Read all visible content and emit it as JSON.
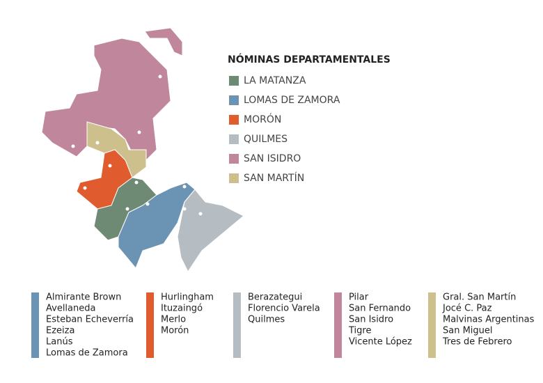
{
  "title": "NÓMINAS DEPARTAMENTALES",
  "legend": [
    {
      "label": "LA MATANZA",
      "color": "#6e8a74"
    },
    {
      "label": "LOMAS DE ZAMORA",
      "color": "#6b93b3"
    },
    {
      "label": "MORÓN",
      "color": "#e05c2e"
    },
    {
      "label": "QUILMES",
      "color": "#b6bdc2"
    },
    {
      "label": "SAN ISIDRO",
      "color": "#c0869c"
    },
    {
      "label": "SAN MARTÍN",
      "color": "#cdc08c"
    }
  ],
  "groups": [
    {
      "color": "#6b93b3",
      "items": [
        "Almirante Brown",
        "Avellaneda",
        "Esteban Echeverría",
        "Ezeiza",
        "Lanús",
        "Lomas de Zamora"
      ]
    },
    {
      "color": "#e05c2e",
      "items": [
        "Hurlingham",
        "Ituzaingó",
        "Merlo",
        "Morón"
      ]
    },
    {
      "color": "#b6bdc2",
      "items": [
        "Berazategui",
        "Florencio Varela",
        "Quilmes"
      ]
    },
    {
      "color": "#c0869c",
      "items": [
        "Pilar",
        "San Fernando",
        "San Isidro",
        "Tigre",
        "Vicente López"
      ]
    },
    {
      "color": "#cdc08c",
      "items": [
        "Gral. San Martín",
        "Jocé C. Paz",
        "Malvinas Argentinas",
        "San Miguel",
        "Tres de Febrero"
      ]
    }
  ]
}
